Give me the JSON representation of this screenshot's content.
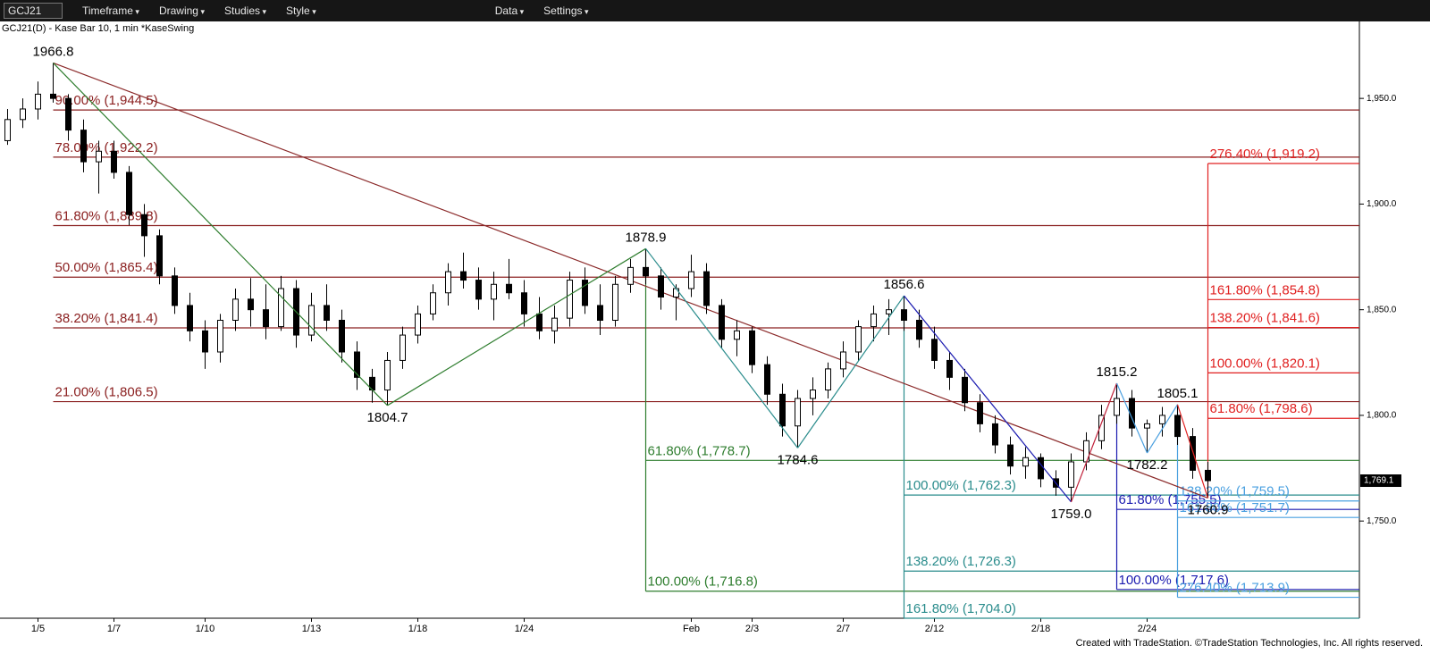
{
  "toolbar": {
    "symbol": "GCJ21",
    "items": [
      "Timeframe",
      "Drawing",
      "Studies",
      "Style",
      "Data",
      "Settings"
    ]
  },
  "chart_data": {
    "type": "candlestick",
    "title": "GCJ21(D) - Kase Bar 10, 1 min  *KaseSwing",
    "footer": "Created with TradeStation. ©TradeStation Technologies, Inc. All rights reserved.",
    "categories": [
      null,
      null,
      "1/5",
      null,
      null,
      null,
      null,
      "1/7",
      null,
      null,
      null,
      null,
      null,
      "1/10",
      null,
      null,
      null,
      null,
      null,
      null,
      "1/13",
      null,
      null,
      null,
      null,
      null,
      null,
      "1/18",
      null,
      null,
      null,
      null,
      null,
      null,
      "1/24",
      null,
      null,
      null,
      null,
      null,
      null,
      null,
      null,
      null,
      null,
      "Feb",
      null,
      null,
      null,
      "2/3",
      null,
      null,
      null,
      null,
      null,
      "2/7",
      null,
      null,
      null,
      null,
      null,
      "2/12",
      null,
      null,
      null,
      null,
      null,
      null,
      "2/18",
      null,
      null,
      null,
      null,
      null,
      null,
      "2/24",
      null,
      null,
      null,
      null
    ],
    "open": [
      1930,
      1940,
      1945,
      1952,
      1950,
      1935,
      1920,
      1925,
      1915,
      1895,
      1885,
      1866,
      1852,
      1840,
      1830,
      1845,
      1855,
      1850,
      1842,
      1860,
      1838,
      1852,
      1845,
      1830,
      1818,
      1812,
      1826,
      1838,
      1848,
      1858,
      1868,
      1864,
      1855,
      1862,
      1858,
      1848,
      1840,
      1846,
      1864,
      1852,
      1845,
      1862,
      1870,
      1866,
      1856,
      1860,
      1868,
      1852,
      1836,
      1840,
      1824,
      1810,
      1795,
      1808,
      1812,
      1822,
      1830,
      1842,
      1848,
      1850,
      1845,
      1836,
      1826,
      1818,
      1806,
      1796,
      1786,
      1776,
      1780,
      1770,
      1766,
      1778,
      1788,
      1800,
      1808,
      1794,
      1796,
      1800,
      1790,
      1774
    ],
    "high": [
      1945,
      1950,
      1958,
      1966.8,
      1952,
      1940,
      1930,
      1930,
      1918,
      1900,
      1888,
      1870,
      1858,
      1845,
      1848,
      1860,
      1865,
      1862,
      1866,
      1864,
      1858,
      1862,
      1850,
      1835,
      1822,
      1830,
      1842,
      1852,
      1862,
      1872,
      1877,
      1870,
      1868,
      1874,
      1864,
      1856,
      1852,
      1868,
      1870,
      1862,
      1866,
      1874,
      1878.9,
      1870,
      1862,
      1876,
      1872,
      1855,
      1845,
      1842,
      1828,
      1815,
      1812,
      1818,
      1825,
      1835,
      1845,
      1852,
      1855,
      1856.6,
      1850,
      1842,
      1830,
      1822,
      1810,
      1800,
      1790,
      1785,
      1782,
      1774,
      1782,
      1792,
      1805,
      1815.2,
      1812,
      1798,
      1804,
      1805.1,
      1794,
      1778
    ],
    "low": [
      1928,
      1936,
      1940,
      1948,
      1930,
      1915,
      1905,
      1912,
      1890,
      1875,
      1862,
      1848,
      1835,
      1822,
      1825,
      1840,
      1842,
      1836,
      1840,
      1832,
      1835,
      1840,
      1825,
      1812,
      1806,
      1804.7,
      1822,
      1834,
      1845,
      1852,
      1860,
      1850,
      1845,
      1855,
      1842,
      1836,
      1834,
      1842,
      1848,
      1838,
      1842,
      1858,
      1862,
      1850,
      1845,
      1856,
      1848,
      1832,
      1828,
      1820,
      1805,
      1790,
      1784.6,
      1800,
      1808,
      1818,
      1826,
      1835,
      1838,
      1840,
      1832,
      1822,
      1812,
      1802,
      1792,
      1782,
      1772,
      1770,
      1766,
      1762,
      1759,
      1774,
      1784,
      1796,
      1790,
      1782.2,
      1790,
      1786,
      1770,
      1760.9
    ],
    "close": [
      1940,
      1945,
      1952,
      1950,
      1935,
      1920,
      1925,
      1915,
      1895,
      1885,
      1866,
      1852,
      1840,
      1830,
      1845,
      1855,
      1850,
      1842,
      1860,
      1838,
      1852,
      1845,
      1830,
      1818,
      1812,
      1826,
      1838,
      1848,
      1858,
      1868,
      1864,
      1855,
      1862,
      1858,
      1848,
      1840,
      1846,
      1864,
      1852,
      1845,
      1862,
      1870,
      1866,
      1856,
      1860,
      1868,
      1852,
      1836,
      1840,
      1824,
      1810,
      1795,
      1808,
      1812,
      1822,
      1830,
      1842,
      1848,
      1850,
      1845,
      1836,
      1826,
      1818,
      1806,
      1796,
      1786,
      1776,
      1780,
      1770,
      1766,
      1778,
      1788,
      1800,
      1808,
      1794,
      1796,
      1800,
      1790,
      1774,
      1769.1
    ],
    "ylim": [
      1704,
      1986
    ],
    "yticks": [
      {
        "value": 1750,
        "label": "1,750.0"
      },
      {
        "value": 1800,
        "label": "1,800.0"
      },
      {
        "value": 1850,
        "label": "1,850.0"
      },
      {
        "value": 1900,
        "label": "1,900.0"
      },
      {
        "value": 1950,
        "label": "1,950.0"
      }
    ],
    "last_price": {
      "value": 1769.1,
      "label": "1,769.1"
    },
    "trendline_color": "#8b2a2a",
    "swings": [
      {
        "value": 1966.8,
        "level_color": "#8b2020",
        "levels": [
          {
            "value": 1944.5,
            "label": "90.00% (1,944.5)"
          },
          {
            "value": 1922.2,
            "label": "78.00% (1,922.2)"
          },
          {
            "value": 1889.8,
            "label": "61.80% (1,889.8)"
          },
          {
            "value": 1865.4,
            "label": "50.00% (1,865.4)"
          },
          {
            "value": 1841.4,
            "label": "38.20% (1,841.4)"
          },
          {
            "value": 1806.5,
            "label": "21.00% (1,806.5)"
          }
        ]
      },
      {
        "value": 1804.7,
        "line_color": "#2e7d2e"
      },
      {
        "value": 1878.9,
        "line_color": "#2e7d2e",
        "level_color": "#2e7d2e",
        "levels": [
          {
            "value": 1778.7,
            "label": "61.80% (1,778.7)"
          },
          {
            "value": 1716.8,
            "label": "100.00% (1,716.8)"
          }
        ]
      },
      {
        "value": 1784.6,
        "line_color": "#2a8c8c"
      },
      {
        "value": 1856.6,
        "line_color": "#2a8c8c",
        "level_color": "#2a8c8c",
        "levels": [
          {
            "value": 1762.3,
            "label": "100.00% (1,762.3)"
          },
          {
            "value": 1726.3,
            "label": "138.20% (1,726.3)"
          },
          {
            "value": 1704.0,
            "label": "161.80% (1,704.0)"
          }
        ]
      },
      {
        "value": 1759,
        "label": "1759.0",
        "line_color": "#1a1ab0"
      },
      {
        "value": 1815.2,
        "line_color": "#c0203a",
        "level_color": "#1a1ab0",
        "levels": [
          {
            "value": 1755.5,
            "label": "61.80% (1,755.5)"
          },
          {
            "value": 1717.6,
            "label": "100.00% (1,717.6)"
          }
        ]
      },
      {
        "value": 1782.2,
        "line_color": "#4aa0e0"
      },
      {
        "value": 1805.1,
        "line_color": "#4aa0e0",
        "level_color": "#4aa0e0",
        "levels": [
          {
            "value": 1759.5,
            "label": "138.20% (1,759.5)"
          },
          {
            "value": 1751.7,
            "label": "161.80% (1,751.7)"
          },
          {
            "value": 1713.9,
            "label": "276.40% (1,713.9)"
          }
        ]
      },
      {
        "value": 1760.9,
        "line_color": "#e02020",
        "level_color": "#e02020",
        "levels": [
          {
            "value": 1919.2,
            "label": "276.40% (1,919.2)"
          },
          {
            "value": 1854.8,
            "label": "161.80% (1,854.8)"
          },
          {
            "value": 1841.6,
            "label": "138.20% (1,841.6)"
          },
          {
            "value": 1820.1,
            "label": "100.00% (1,820.1)"
          },
          {
            "value": 1798.6,
            "label": "61.80% (1,798.6)"
          }
        ]
      }
    ]
  }
}
